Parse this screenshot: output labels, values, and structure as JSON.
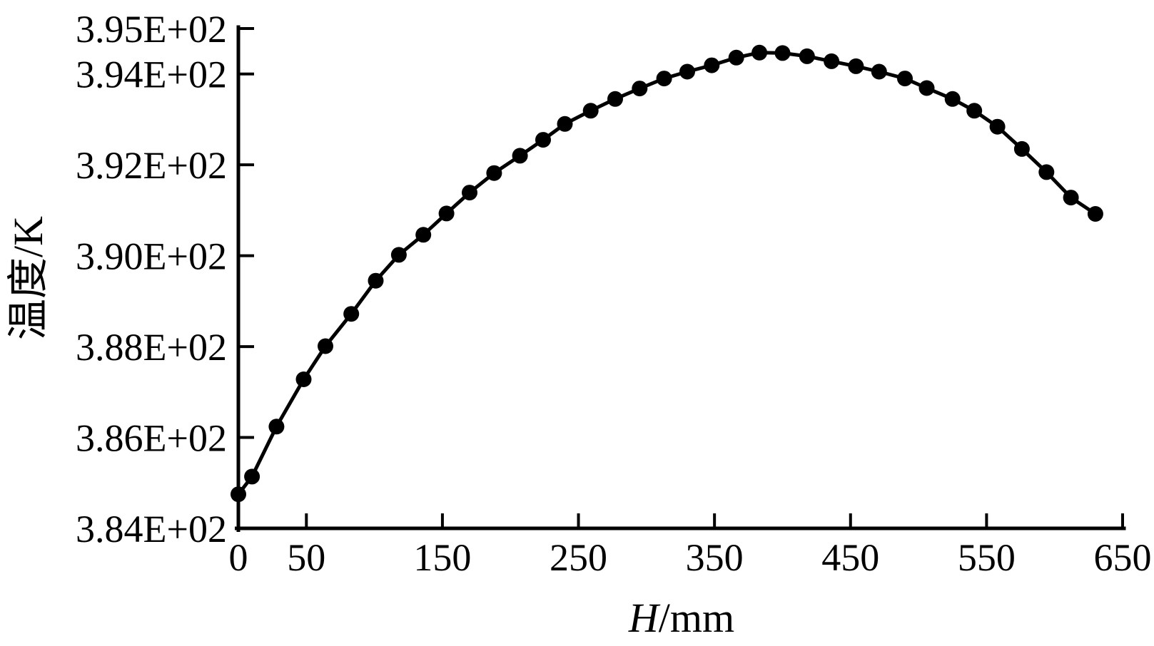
{
  "figure": {
    "background_color": "#ffffff",
    "ink_color": "#000000",
    "y_axis_title": "温度/K",
    "x_axis_title": "H/mm",
    "x_axis_title_var": "H",
    "x_axis_title_rest": "/mm"
  },
  "chart_data": {
    "type": "line",
    "title": "",
    "xlabel": "H/mm",
    "ylabel": "温度/K",
    "x_range": [
      0,
      650
    ],
    "y_range": [
      384,
      395
    ],
    "grid": false,
    "legend": "none",
    "marker": "filled-circle",
    "marker_color": "#000000",
    "line_color": "#000000",
    "axis_style": "left-bottom-spines-inward-ticks",
    "x_ticks": {
      "values": [
        0,
        50,
        150,
        250,
        350,
        450,
        550,
        650
      ],
      "labels": [
        "0",
        "50",
        "150",
        "250",
        "350",
        "450",
        "550",
        "650"
      ]
    },
    "y_ticks": {
      "values": [
        384,
        386,
        388,
        390,
        392,
        394,
        395
      ],
      "labels": [
        "3.84E+02",
        "3.86E+02",
        "3.88E+02",
        "3.90E+02",
        "3.92E+02",
        "3.94E+02",
        "3.95E+02"
      ]
    },
    "series": [
      {
        "name": "温度",
        "x": [
          0,
          10,
          28,
          48,
          64,
          83,
          101,
          118,
          136,
          153,
          170,
          188,
          207,
          224,
          240,
          259,
          277,
          295,
          313,
          330,
          348,
          366,
          383,
          400,
          418,
          436,
          454,
          471,
          490,
          506,
          525,
          541,
          558,
          576,
          594,
          612,
          630
        ],
        "y": [
          384.75,
          385.14,
          386.24,
          387.28,
          388.01,
          388.72,
          389.45,
          390.02,
          390.46,
          390.93,
          391.39,
          391.82,
          392.2,
          392.55,
          392.9,
          393.19,
          393.45,
          393.68,
          393.9,
          394.05,
          394.19,
          394.36,
          394.47,
          394.46,
          394.39,
          394.28,
          394.17,
          394.05,
          393.9,
          393.69,
          393.45,
          393.19,
          392.84,
          392.35,
          391.84,
          391.28,
          390.92
        ]
      }
    ]
  }
}
